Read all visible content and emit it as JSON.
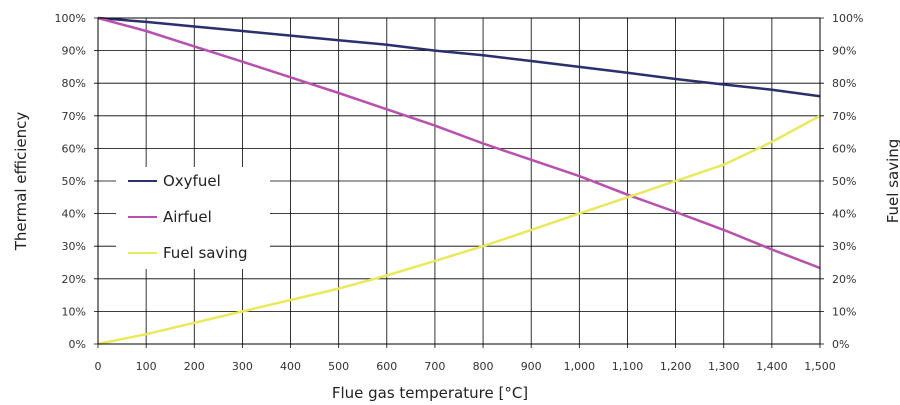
{
  "chart_data": {
    "type": "line",
    "title": "",
    "xlabel": "Flue gas temperature  [°C]",
    "ylabel": "Thermal efficiency",
    "y2label": "Fuel saving",
    "xlim": [
      0,
      1500
    ],
    "ylim": [
      0,
      100
    ],
    "y2lim": [
      0,
      100
    ],
    "grid": true,
    "legend_position": "left-center",
    "x_ticks": [
      "0",
      "100",
      "200",
      "300",
      "400",
      "500",
      "600",
      "700",
      "800",
      "900",
      "1,000",
      "1,100",
      "1,200",
      "1,300",
      "1,400",
      "1,500"
    ],
    "y_ticks": [
      "0%",
      "10%",
      "20%",
      "30%",
      "40%",
      "50%",
      "60%",
      "70%",
      "80%",
      "90%",
      "100%"
    ],
    "y2_ticks": [
      "0%",
      "10%",
      "20%",
      "30%",
      "40%",
      "50%",
      "60%",
      "70%",
      "80%",
      "90%",
      "100%"
    ],
    "x": [
      0,
      100,
      200,
      300,
      400,
      500,
      600,
      700,
      800,
      900,
      1000,
      1100,
      1200,
      1300,
      1400,
      1500
    ],
    "series": [
      {
        "name": "Oxyfuel",
        "color": "#2a2f6e",
        "axis": "left",
        "values": [
          100,
          98.8,
          97.4,
          96.0,
          94.6,
          93.2,
          91.8,
          90.0,
          88.6,
          86.8,
          85.0,
          83.2,
          81.3,
          79.6,
          78.0,
          76.0
        ]
      },
      {
        "name": "Airfuel",
        "color": "#b94fb0",
        "axis": "left",
        "values": [
          100,
          96.0,
          91.3,
          86.6,
          81.8,
          77.0,
          72.0,
          67.0,
          61.5,
          56.5,
          51.5,
          45.8,
          40.5,
          35.0,
          29.0,
          23.3
        ]
      },
      {
        "name": "Fuel saving",
        "color": "#ebe85a",
        "axis": "right",
        "values": [
          0,
          3.0,
          6.5,
          10.0,
          13.5,
          17.0,
          21.0,
          25.5,
          30.0,
          35.0,
          40.0,
          45.0,
          50.0,
          55.0,
          62.0,
          70.0
        ]
      }
    ]
  }
}
